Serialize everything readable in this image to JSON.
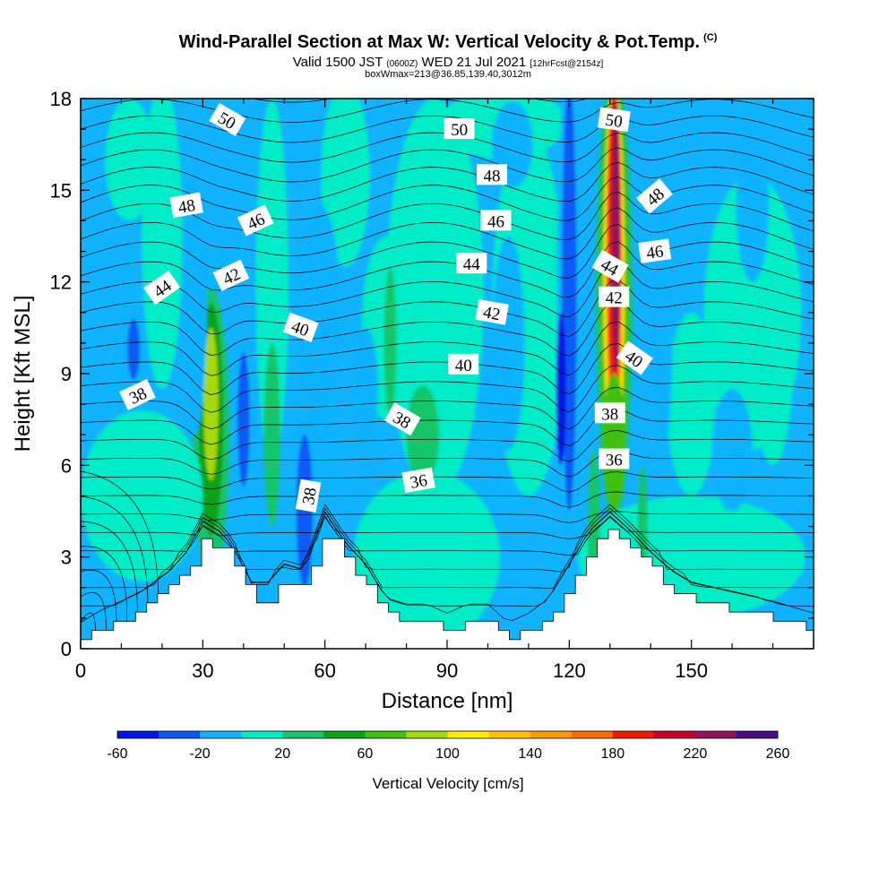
{
  "title": {
    "main": "Wind-Parallel Section at Max W: Vertical Velocity & Pot.Temp.",
    "copyright": "(C)",
    "valid_prefix": "Valid 1500 JST",
    "valid_utc": "(0600Z)",
    "valid_date": "WED 21 Jul 2021",
    "forecast": "[12hrFcst@2154z]",
    "box": "boxWmax=213@36.85,139.40,3012m"
  },
  "chart_data": {
    "type": "heatmap",
    "xlabel": "Distance [nm]",
    "ylabel": "Height [Kft MSL]",
    "xlim": [
      0,
      180
    ],
    "ylim": [
      0,
      18
    ],
    "x_ticks": [
      "0",
      "30",
      "60",
      "90",
      "120",
      "150"
    ],
    "y_ticks": [
      "0",
      "3",
      "6",
      "9",
      "12",
      "15",
      "18"
    ],
    "colorbar": {
      "label": "Vertical Velocity [cm/s]",
      "tick_labels": [
        "-60",
        "-20",
        "20",
        "60",
        "100",
        "140",
        "180",
        "220",
        "260"
      ],
      "levels": [
        -60,
        -40,
        -20,
        0,
        20,
        40,
        60,
        80,
        100,
        120,
        140,
        160,
        180,
        200,
        220,
        240,
        260
      ],
      "colors": [
        "#0015e8",
        "#0a5af5",
        "#11b3ff",
        "#00ecc6",
        "#19c46a",
        "#08a214",
        "#40c00c",
        "#a6d80e",
        "#ffeb00",
        "#ffc200",
        "#ff9a00",
        "#ff6e00",
        "#ef1c00",
        "#c5002a",
        "#8e1459",
        "#4c0d84"
      ]
    },
    "terrain": [
      [
        0,
        0.3
      ],
      [
        5,
        0.7
      ],
      [
        10,
        1.0
      ],
      [
        15,
        1.3
      ],
      [
        18,
        1.6
      ],
      [
        22,
        2.0
      ],
      [
        26,
        2.6
      ],
      [
        30,
        3.6
      ],
      [
        35,
        3.2
      ],
      [
        38,
        2.6
      ],
      [
        42,
        1.6
      ],
      [
        46,
        1.6
      ],
      [
        50,
        2.2
      ],
      [
        55,
        2.0
      ],
      [
        60,
        3.9
      ],
      [
        65,
        2.9
      ],
      [
        70,
        2.2
      ],
      [
        75,
        1.1
      ],
      [
        80,
        0.9
      ],
      [
        85,
        0.9
      ],
      [
        90,
        0.6
      ],
      [
        95,
        0.9
      ],
      [
        100,
        0.9
      ],
      [
        105,
        0.3
      ],
      [
        110,
        0.6
      ],
      [
        115,
        1.1
      ],
      [
        120,
        2.2
      ],
      [
        125,
        3.3
      ],
      [
        130,
        3.9
      ],
      [
        135,
        3.3
      ],
      [
        140,
        2.6
      ],
      [
        145,
        2.0
      ],
      [
        150,
        1.6
      ],
      [
        160,
        1.3
      ],
      [
        170,
        1.0
      ],
      [
        180,
        0.6
      ]
    ],
    "potential_temperature_labels": [
      {
        "text": "50",
        "x": 36,
        "y": 17.3,
        "rot": 30
      },
      {
        "text": "50",
        "x": 93,
        "y": 17.0,
        "rot": 0
      },
      {
        "text": "50",
        "x": 131,
        "y": 17.3,
        "rot": 8
      },
      {
        "text": "48",
        "x": 26,
        "y": 14.5,
        "rot": -10
      },
      {
        "text": "48",
        "x": 101,
        "y": 15.5,
        "rot": 0
      },
      {
        "text": "48",
        "x": 141,
        "y": 14.8,
        "rot": -40
      },
      {
        "text": "46",
        "x": 43,
        "y": 14.0,
        "rot": -25
      },
      {
        "text": "46",
        "x": 102,
        "y": 14.0,
        "rot": 0
      },
      {
        "text": "46",
        "x": 141,
        "y": 13.0,
        "rot": -8
      },
      {
        "text": "44",
        "x": 20,
        "y": 11.8,
        "rot": -35
      },
      {
        "text": "44",
        "x": 96,
        "y": 12.6,
        "rot": 0
      },
      {
        "text": "44",
        "x": 130,
        "y": 12.5,
        "rot": 30
      },
      {
        "text": "42",
        "x": 37,
        "y": 12.2,
        "rot": -25
      },
      {
        "text": "42",
        "x": 101,
        "y": 11.0,
        "rot": 10
      },
      {
        "text": "42",
        "x": 131,
        "y": 11.5,
        "rot": 0
      },
      {
        "text": "40",
        "x": 54,
        "y": 10.5,
        "rot": 20
      },
      {
        "text": "40",
        "x": 94,
        "y": 9.3,
        "rot": 0
      },
      {
        "text": "40",
        "x": 136,
        "y": 9.5,
        "rot": 35
      },
      {
        "text": "38",
        "x": 14,
        "y": 8.3,
        "rot": -25
      },
      {
        "text": "38",
        "x": 56,
        "y": 5.0,
        "rot": -80
      },
      {
        "text": "38",
        "x": 79,
        "y": 7.5,
        "rot": 30
      },
      {
        "text": "38",
        "x": 130,
        "y": 7.7,
        "rot": 0
      },
      {
        "text": "36",
        "x": 83,
        "y": 5.5,
        "rot": -10
      },
      {
        "text": "36",
        "x": 131,
        "y": 6.2,
        "rot": 0
      }
    ]
  }
}
